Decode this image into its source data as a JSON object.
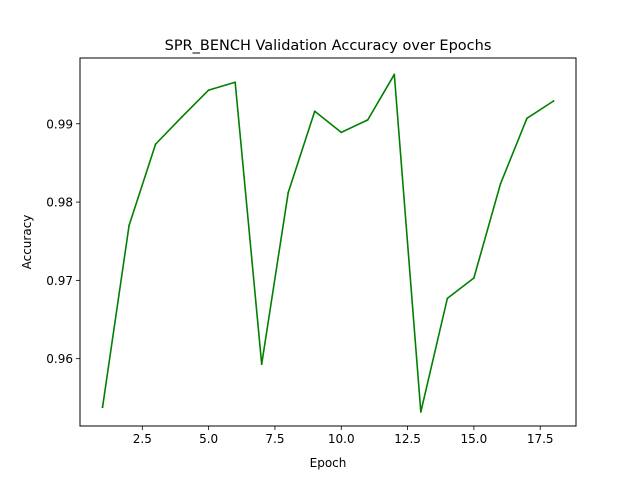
{
  "chart_data": {
    "type": "line",
    "title": "SPR_BENCH Validation Accuracy over Epochs",
    "xlabel": "Epoch",
    "ylabel": "Accuracy",
    "xlim": [
      0.15,
      18.85
    ],
    "ylim": [
      0.9514,
      0.9984
    ],
    "xticks": [
      2.5,
      5.0,
      7.5,
      10.0,
      12.5,
      15.0,
      17.5
    ],
    "xtick_labels": [
      "2.5",
      "5.0",
      "7.5",
      "10.0",
      "12.5",
      "15.0",
      "17.5"
    ],
    "yticks": [
      0.96,
      0.97,
      0.98,
      0.99
    ],
    "ytick_labels": [
      "0.96",
      "0.97",
      "0.98",
      "0.99"
    ],
    "grid": false,
    "series": [
      {
        "color": "#008000",
        "x": [
          1,
          2,
          3,
          4,
          5,
          6,
          7,
          8,
          9,
          10,
          11,
          12,
          13,
          14,
          15,
          16,
          17,
          18
        ],
        "values": [
          0.9538,
          0.977,
          0.9874,
          0.9909,
          0.9943,
          0.9953,
          0.9593,
          0.9812,
          0.9916,
          0.9889,
          0.9905,
          0.9963,
          0.9532,
          0.9677,
          0.9703,
          0.9823,
          0.9907,
          0.9929
        ]
      }
    ]
  }
}
